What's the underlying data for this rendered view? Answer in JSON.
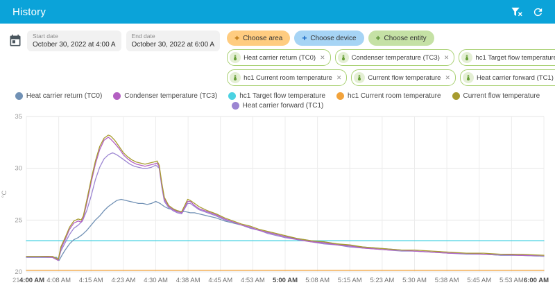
{
  "colors": {
    "header": "#0ba3d9",
    "chip_border": "#a9d173"
  },
  "header": {
    "title": "History"
  },
  "date_range": {
    "start": {
      "label": "Start date",
      "value": "October 30, 2022 at 4:00 A"
    },
    "end": {
      "label": "End date",
      "value": "October 30, 2022 at 6:00 A"
    }
  },
  "choose_chips": [
    {
      "label": "Choose area",
      "bg": "#ffcc80",
      "plus_color": "#b26a00"
    },
    {
      "label": "Choose device",
      "bg": "#a6d4f5",
      "plus_color": "#1565c0"
    },
    {
      "label": "Choose entity",
      "bg": "#c5e1a5",
      "plus_color": "#558b2f"
    }
  ],
  "entity_chips": [
    {
      "label": "Heat carrier return (TC0)"
    },
    {
      "label": "Condenser temperature (TC3)"
    },
    {
      "label": "hc1 Target flow temperature"
    },
    {
      "label": "hc1 Current room temperature"
    },
    {
      "label": "Current flow temperature"
    },
    {
      "label": "Heat carrier forward (TC1)"
    }
  ],
  "chart_data": {
    "type": "line",
    "title": "",
    "xlabel": "Time",
    "ylabel": "°C",
    "ylim": [
      20,
      35
    ],
    "yticks": [
      20,
      25,
      30,
      35
    ],
    "y_min_label": "21",
    "xlim": [
      0,
      120
    ],
    "grid": true,
    "legend_position": "top-center",
    "xticks": [
      {
        "t": 0,
        "label": "4:00 AM",
        "bold": true
      },
      {
        "t": 7.5,
        "label": "4:08 AM"
      },
      {
        "t": 15,
        "label": "4:15 AM"
      },
      {
        "t": 22.5,
        "label": "4:23 AM"
      },
      {
        "t": 30,
        "label": "4:30 AM"
      },
      {
        "t": 37.5,
        "label": "4:38 AM"
      },
      {
        "t": 45,
        "label": "4:45 AM"
      },
      {
        "t": 52.5,
        "label": "4:53 AM"
      },
      {
        "t": 60,
        "label": "5:00 AM",
        "bold": true
      },
      {
        "t": 67.5,
        "label": "5:08 AM"
      },
      {
        "t": 75,
        "label": "5:15 AM"
      },
      {
        "t": 82.5,
        "label": "5:23 AM"
      },
      {
        "t": 90,
        "label": "5:30 AM"
      },
      {
        "t": 97.5,
        "label": "5:38 AM"
      },
      {
        "t": 105,
        "label": "5:45 AM"
      },
      {
        "t": 112.5,
        "label": "5:53 AM"
      },
      {
        "t": 120,
        "label": "6:00 AM",
        "bold": true
      }
    ],
    "legend_rows": [
      [
        0,
        1,
        2,
        3,
        4
      ],
      [
        5
      ]
    ],
    "series": [
      {
        "name": "Heat carrier return (TC0)",
        "color": "#7191b5",
        "points": [
          [
            0,
            21.4
          ],
          [
            4,
            21.4
          ],
          [
            7,
            21.4
          ],
          [
            7.6,
            21.1
          ],
          [
            8.4,
            21.7
          ],
          [
            9,
            22.1
          ],
          [
            10,
            22.7
          ],
          [
            11,
            23.1
          ],
          [
            12,
            23.3
          ],
          [
            13,
            23.6
          ],
          [
            14,
            24.0
          ],
          [
            15,
            24.5
          ],
          [
            16,
            25.0
          ],
          [
            17,
            25.4
          ],
          [
            18,
            25.9
          ],
          [
            19,
            26.3
          ],
          [
            20,
            26.6
          ],
          [
            21,
            26.9
          ],
          [
            22,
            27.0
          ],
          [
            23,
            26.9
          ],
          [
            24,
            26.8
          ],
          [
            25,
            26.7
          ],
          [
            26,
            26.6
          ],
          [
            27,
            26.6
          ],
          [
            28,
            26.5
          ],
          [
            29,
            26.6
          ],
          [
            30,
            26.8
          ],
          [
            31,
            26.6
          ],
          [
            32,
            26.3
          ],
          [
            33,
            26.1
          ],
          [
            34,
            26.0
          ],
          [
            35,
            25.9
          ],
          [
            36,
            25.8
          ],
          [
            37,
            25.8
          ],
          [
            38,
            25.7
          ],
          [
            39,
            25.7
          ],
          [
            40,
            25.6
          ],
          [
            42,
            25.4
          ],
          [
            44,
            25.2
          ],
          [
            46,
            24.9
          ],
          [
            48,
            24.7
          ],
          [
            50,
            24.5
          ],
          [
            52,
            24.2
          ],
          [
            54,
            24.0
          ],
          [
            56,
            23.8
          ],
          [
            58,
            23.6
          ],
          [
            60,
            23.4
          ],
          [
            63,
            23.2
          ],
          [
            66,
            23.0
          ],
          [
            69,
            22.8
          ],
          [
            72,
            22.7
          ],
          [
            75,
            22.5
          ],
          [
            78,
            22.4
          ],
          [
            81,
            22.3
          ],
          [
            84,
            22.2
          ],
          [
            87,
            22.1
          ],
          [
            90,
            22.0
          ],
          [
            94,
            21.9
          ],
          [
            98,
            21.8
          ],
          [
            102,
            21.8
          ],
          [
            106,
            21.7
          ],
          [
            110,
            21.6
          ],
          [
            114,
            21.6
          ],
          [
            120,
            21.5
          ]
        ]
      },
      {
        "name": "Condenser temperature (TC3)",
        "color": "#b35fc2",
        "points": [
          [
            0,
            21.5
          ],
          [
            3,
            21.5
          ],
          [
            6,
            21.4
          ],
          [
            7.4,
            21.1
          ],
          [
            8,
            22.2
          ],
          [
            9,
            23.1
          ],
          [
            10,
            24.1
          ],
          [
            11,
            24.7
          ],
          [
            12,
            24.9
          ],
          [
            12.7,
            24.8
          ],
          [
            13.2,
            25.2
          ],
          [
            14,
            26.6
          ],
          [
            15,
            28.6
          ],
          [
            16,
            30.4
          ],
          [
            17,
            31.8
          ],
          [
            18,
            32.7
          ],
          [
            19,
            33.0
          ],
          [
            19.6,
            32.8
          ],
          [
            20.5,
            32.4
          ],
          [
            21.5,
            31.9
          ],
          [
            22.5,
            31.3
          ],
          [
            23.5,
            30.9
          ],
          [
            24.5,
            30.6
          ],
          [
            25.5,
            30.4
          ],
          [
            26.5,
            30.3
          ],
          [
            27.5,
            30.2
          ],
          [
            28.5,
            30.3
          ],
          [
            29.5,
            30.4
          ],
          [
            30.3,
            30.5
          ],
          [
            30.8,
            30.1
          ],
          [
            31.4,
            28.4
          ],
          [
            32,
            27.0
          ],
          [
            33,
            26.3
          ],
          [
            34,
            26.0
          ],
          [
            35,
            25.8
          ],
          [
            36,
            25.7
          ],
          [
            36.7,
            26.2
          ],
          [
            37.4,
            26.8
          ],
          [
            38,
            26.8
          ],
          [
            39,
            26.4
          ],
          [
            40,
            26.1
          ],
          [
            42,
            25.8
          ],
          [
            44,
            25.5
          ],
          [
            46,
            25.1
          ],
          [
            48,
            24.8
          ],
          [
            50,
            24.5
          ],
          [
            52,
            24.3
          ],
          [
            54,
            24.0
          ],
          [
            56,
            23.8
          ],
          [
            58,
            23.6
          ],
          [
            60,
            23.4
          ],
          [
            63,
            23.1
          ],
          [
            66,
            22.9
          ],
          [
            69,
            22.8
          ],
          [
            72,
            22.6
          ],
          [
            75,
            22.5
          ],
          [
            78,
            22.3
          ],
          [
            81,
            22.2
          ],
          [
            84,
            22.1
          ],
          [
            87,
            22.1
          ],
          [
            90,
            22.0
          ],
          [
            94,
            21.9
          ],
          [
            98,
            21.8
          ],
          [
            102,
            21.8
          ],
          [
            106,
            21.7
          ],
          [
            110,
            21.7
          ],
          [
            114,
            21.6
          ],
          [
            120,
            21.6
          ]
        ]
      },
      {
        "name": "hc1 Target flow temperature",
        "color": "#4bd2e2",
        "points": [
          [
            0,
            23
          ],
          [
            120,
            23
          ]
        ]
      },
      {
        "name": "hc1 Current room temperature",
        "color": "#f2a33c",
        "points": [
          [
            0,
            20.15
          ],
          [
            120,
            20.15
          ]
        ]
      },
      {
        "name": "Current flow temperature",
        "color": "#a79b2e",
        "points": [
          [
            0,
            21.5
          ],
          [
            3,
            21.5
          ],
          [
            6,
            21.5
          ],
          [
            7.4,
            21.2
          ],
          [
            8,
            22.4
          ],
          [
            9,
            23.3
          ],
          [
            10,
            24.3
          ],
          [
            11,
            24.9
          ],
          [
            12,
            25.1
          ],
          [
            12.7,
            25.0
          ],
          [
            13.2,
            25.4
          ],
          [
            14,
            26.9
          ],
          [
            15,
            28.9
          ],
          [
            16,
            30.7
          ],
          [
            17,
            32.1
          ],
          [
            18,
            32.9
          ],
          [
            19,
            33.2
          ],
          [
            19.6,
            33.1
          ],
          [
            20.5,
            32.7
          ],
          [
            21.5,
            32.1
          ],
          [
            22.5,
            31.5
          ],
          [
            23.5,
            31.1
          ],
          [
            24.5,
            30.8
          ],
          [
            25.5,
            30.6
          ],
          [
            26.5,
            30.5
          ],
          [
            27.5,
            30.4
          ],
          [
            28.5,
            30.5
          ],
          [
            29.5,
            30.6
          ],
          [
            30.3,
            30.7
          ],
          [
            30.8,
            30.3
          ],
          [
            31.4,
            28.6
          ],
          [
            32,
            27.2
          ],
          [
            33,
            26.4
          ],
          [
            34,
            26.1
          ],
          [
            35,
            25.9
          ],
          [
            36,
            25.8
          ],
          [
            36.7,
            26.4
          ],
          [
            37.4,
            27.0
          ],
          [
            38,
            26.9
          ],
          [
            39,
            26.6
          ],
          [
            40,
            26.3
          ],
          [
            42,
            25.9
          ],
          [
            44,
            25.6
          ],
          [
            46,
            25.2
          ],
          [
            48,
            24.9
          ],
          [
            50,
            24.6
          ],
          [
            52,
            24.4
          ],
          [
            54,
            24.1
          ],
          [
            56,
            23.9
          ],
          [
            58,
            23.7
          ],
          [
            60,
            23.5
          ],
          [
            63,
            23.2
          ],
          [
            66,
            23.0
          ],
          [
            69,
            22.9
          ],
          [
            72,
            22.7
          ],
          [
            75,
            22.6
          ],
          [
            78,
            22.4
          ],
          [
            81,
            22.3
          ],
          [
            84,
            22.2
          ],
          [
            87,
            22.1
          ],
          [
            90,
            22.1
          ],
          [
            94,
            22.0
          ],
          [
            98,
            21.9
          ],
          [
            102,
            21.8
          ],
          [
            106,
            21.8
          ],
          [
            110,
            21.7
          ],
          [
            114,
            21.7
          ],
          [
            120,
            21.6
          ]
        ]
      },
      {
        "name": "Heat carrier forward (TC1)",
        "color": "#9c86d2",
        "points": [
          [
            0,
            21.4
          ],
          [
            3,
            21.4
          ],
          [
            6,
            21.4
          ],
          [
            7.4,
            21.1
          ],
          [
            8,
            22.0
          ],
          [
            9,
            22.8
          ],
          [
            10,
            23.6
          ],
          [
            11,
            24.2
          ],
          [
            12,
            24.5
          ],
          [
            13,
            24.9
          ],
          [
            14,
            25.9
          ],
          [
            15,
            27.3
          ],
          [
            16,
            28.9
          ],
          [
            17,
            30.1
          ],
          [
            18,
            30.9
          ],
          [
            19,
            31.3
          ],
          [
            20,
            31.5
          ],
          [
            21,
            31.3
          ],
          [
            22,
            31.0
          ],
          [
            23,
            30.7
          ],
          [
            24,
            30.4
          ],
          [
            25,
            30.2
          ],
          [
            26,
            30.1
          ],
          [
            27,
            30.0
          ],
          [
            28,
            30.0
          ],
          [
            29,
            30.1
          ],
          [
            30,
            30.3
          ],
          [
            30.8,
            30.0
          ],
          [
            31.4,
            28.2
          ],
          [
            32,
            26.8
          ],
          [
            33,
            26.2
          ],
          [
            34,
            25.9
          ],
          [
            35,
            25.7
          ],
          [
            36,
            25.6
          ],
          [
            36.7,
            26.1
          ],
          [
            37.4,
            26.6
          ],
          [
            38,
            26.6
          ],
          [
            39,
            26.3
          ],
          [
            40,
            26.0
          ],
          [
            42,
            25.7
          ],
          [
            44,
            25.4
          ],
          [
            46,
            25.0
          ],
          [
            48,
            24.8
          ],
          [
            50,
            24.5
          ],
          [
            52,
            24.2
          ],
          [
            54,
            24.0
          ],
          [
            56,
            23.7
          ],
          [
            58,
            23.5
          ],
          [
            60,
            23.3
          ],
          [
            63,
            23.1
          ],
          [
            66,
            22.9
          ],
          [
            69,
            22.7
          ],
          [
            72,
            22.6
          ],
          [
            75,
            22.4
          ],
          [
            78,
            22.3
          ],
          [
            81,
            22.2
          ],
          [
            84,
            22.1
          ],
          [
            87,
            22.0
          ],
          [
            90,
            22.0
          ],
          [
            94,
            21.9
          ],
          [
            98,
            21.8
          ],
          [
            102,
            21.7
          ],
          [
            106,
            21.7
          ],
          [
            110,
            21.6
          ],
          [
            114,
            21.6
          ],
          [
            120,
            21.5
          ]
        ]
      }
    ]
  }
}
